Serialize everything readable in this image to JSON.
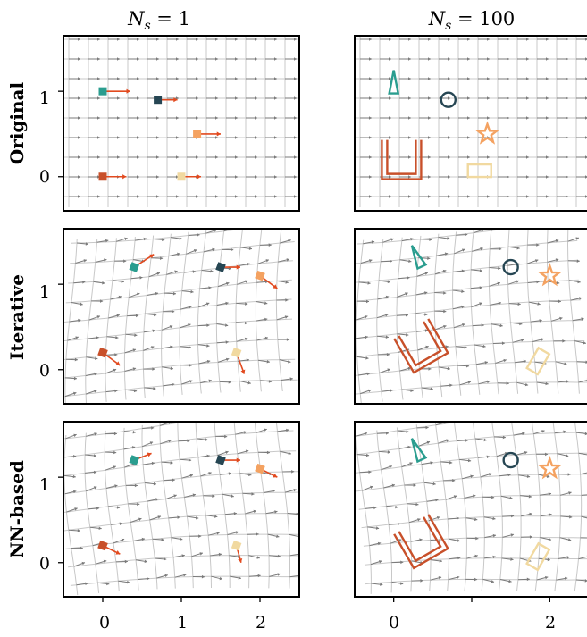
{
  "figure": {
    "columns": [
      {
        "title_symbol": "N",
        "title_sub": "s",
        "title_rest": " = 1"
      },
      {
        "title_symbol": "N",
        "title_sub": "s",
        "title_rest": " = 100"
      }
    ],
    "rows": [
      "Original",
      "Iterative",
      "NN-based"
    ],
    "x_ticks": [
      "0",
      "1",
      "2"
    ],
    "y_ticks": [
      "0",
      "1"
    ]
  },
  "colors": {
    "teal": "#2a9d8f",
    "navy": "#264653",
    "orange": "#f4a261",
    "red": "#c8502a",
    "sand": "#f1d9a0",
    "arrow_red": "#e24a1f",
    "field_arrow": "#7a7a7a",
    "grid": "#c8c8c8"
  },
  "chart_data": [
    {
      "type": "scatter",
      "panel": "Original, N_s = 1",
      "xlim": [
        -0.5,
        2.5
      ],
      "ylim": [
        -0.4,
        1.65
      ],
      "grid": true,
      "points": [
        {
          "x": 0.0,
          "y": 1.0,
          "color": "teal",
          "dx": 0.35,
          "dy": 0.0
        },
        {
          "x": 0.7,
          "y": 0.9,
          "color": "navy",
          "dx": 0.25,
          "dy": 0.0
        },
        {
          "x": 1.2,
          "y": 0.5,
          "color": "orange",
          "dx": 0.3,
          "dy": 0.0
        },
        {
          "x": 0.0,
          "y": 0.0,
          "color": "red",
          "dx": 0.3,
          "dy": 0.0
        },
        {
          "x": 1.0,
          "y": 0.0,
          "color": "sand",
          "dx": 0.25,
          "dy": 0.0
        }
      ]
    },
    {
      "type": "scatter",
      "panel": "Original, N_s = 100",
      "xlim": [
        -0.5,
        2.5
      ],
      "ylim": [
        -0.4,
        1.65
      ],
      "grid": true,
      "shapes": [
        {
          "shape": "triangle",
          "color": "teal",
          "x": 0.0,
          "y": 1.1,
          "angle": 0
        },
        {
          "shape": "circle",
          "color": "navy",
          "x": 0.7,
          "y": 0.9,
          "angle": 0
        },
        {
          "shape": "star",
          "color": "orange",
          "x": 1.2,
          "y": 0.5,
          "angle": 0
        },
        {
          "shape": "u",
          "color": "red",
          "x": 0.1,
          "y": 0.2,
          "angle": 0
        },
        {
          "shape": "rect",
          "color": "sand",
          "x": 1.1,
          "y": 0.07,
          "angle": 0
        }
      ]
    },
    {
      "type": "scatter",
      "panel": "Iterative, N_s = 1",
      "xlim": [
        -0.5,
        2.5
      ],
      "ylim": [
        -0.4,
        1.65
      ],
      "grid": true,
      "points": [
        {
          "x": 0.4,
          "y": 1.2,
          "color": "teal",
          "dx": 0.25,
          "dy": 0.15
        },
        {
          "x": 1.5,
          "y": 1.2,
          "color": "navy",
          "dx": 0.25,
          "dy": 0.0
        },
        {
          "x": 2.0,
          "y": 1.1,
          "color": "orange",
          "dx": 0.22,
          "dy": -0.15
        },
        {
          "x": 0.0,
          "y": 0.2,
          "color": "red",
          "dx": 0.22,
          "dy": -0.15
        },
        {
          "x": 1.7,
          "y": 0.2,
          "color": "sand",
          "dx": 0.1,
          "dy": -0.25
        }
      ]
    },
    {
      "type": "scatter",
      "panel": "Iterative, N_s = 100",
      "xlim": [
        -0.5,
        2.5
      ],
      "ylim": [
        -0.4,
        1.65
      ],
      "grid": true,
      "shapes": [
        {
          "shape": "triangle",
          "color": "teal",
          "x": 0.3,
          "y": 1.32,
          "angle": -25
        },
        {
          "shape": "circle",
          "color": "navy",
          "x": 1.5,
          "y": 1.2,
          "angle": 0
        },
        {
          "shape": "star",
          "color": "orange",
          "x": 2.0,
          "y": 1.1,
          "angle": 0
        },
        {
          "shape": "u",
          "color": "red",
          "x": 0.35,
          "y": 0.28,
          "angle": -30
        },
        {
          "shape": "rect",
          "color": "sand",
          "x": 1.85,
          "y": 0.1,
          "angle": -60
        }
      ]
    },
    {
      "type": "scatter",
      "panel": "NN-based, N_s = 1",
      "xlim": [
        -0.5,
        2.5
      ],
      "ylim": [
        -0.4,
        1.65
      ],
      "grid": true,
      "points": [
        {
          "x": 0.4,
          "y": 1.2,
          "color": "teal",
          "dx": 0.22,
          "dy": 0.08
        },
        {
          "x": 1.5,
          "y": 1.2,
          "color": "navy",
          "dx": 0.25,
          "dy": 0.0
        },
        {
          "x": 2.0,
          "y": 1.1,
          "color": "orange",
          "dx": 0.22,
          "dy": -0.1
        },
        {
          "x": 0.0,
          "y": 0.2,
          "color": "red",
          "dx": 0.22,
          "dy": -0.1
        },
        {
          "x": 1.7,
          "y": 0.2,
          "color": "sand",
          "dx": 0.06,
          "dy": -0.2
        }
      ]
    },
    {
      "type": "scatter",
      "panel": "NN-based, N_s = 100",
      "xlim": [
        -0.5,
        2.5
      ],
      "ylim": [
        -0.4,
        1.65
      ],
      "grid": true,
      "shapes": [
        {
          "shape": "triangle",
          "color": "teal",
          "x": 0.3,
          "y": 1.32,
          "angle": -25
        },
        {
          "shape": "circle",
          "color": "navy",
          "x": 1.5,
          "y": 1.2,
          "angle": 0
        },
        {
          "shape": "star",
          "color": "orange",
          "x": 2.0,
          "y": 1.1,
          "angle": 0
        },
        {
          "shape": "u",
          "color": "red",
          "x": 0.35,
          "y": 0.25,
          "angle": -30
        },
        {
          "shape": "rect",
          "color": "sand",
          "x": 1.85,
          "y": 0.07,
          "angle": -60
        }
      ]
    }
  ]
}
